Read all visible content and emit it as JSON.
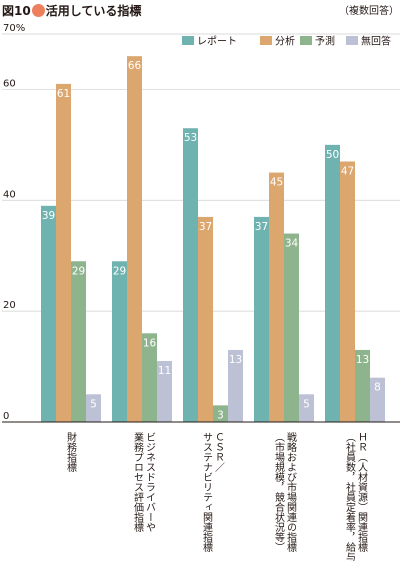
{
  "figure": {
    "label": "図10",
    "title": "活用している指標",
    "note": "（複数回答）",
    "dot_color": "#ee7f5c"
  },
  "chart_data": {
    "type": "bar",
    "categories": [
      [
        "財務指標"
      ],
      [
        "ビジネスドライバーや",
        "業務プロセス評価指標"
      ],
      [
        "ＣＳＲ／",
        "サステナビリティ関連指標"
      ],
      [
        "戦略および市場関連の指標",
        "（市場規模，競合状況等）"
      ],
      [
        "ＨＲ（人材資源）関連指標",
        "（社員数，社員定着率，給与等）"
      ]
    ],
    "series": [
      {
        "name": "レポート",
        "color": "#6fb3b0",
        "values": [
          39,
          29,
          53,
          37,
          50
        ]
      },
      {
        "name": "分析",
        "color": "#dca66f",
        "values": [
          61,
          66,
          37,
          45,
          47
        ]
      },
      {
        "name": "予測",
        "color": "#8db48c",
        "values": [
          29,
          16,
          3,
          34,
          13
        ]
      },
      {
        "name": "無回答",
        "color": "#bcc1d6",
        "values": [
          5,
          11,
          13,
          5,
          8
        ]
      }
    ],
    "yticks": [
      "70%",
      "60",
      "40",
      "20",
      "0"
    ],
    "ytick_values": [
      70,
      60,
      40,
      20,
      0
    ],
    "ylim": [
      0,
      70
    ],
    "grid": true,
    "legend": "top-right"
  }
}
